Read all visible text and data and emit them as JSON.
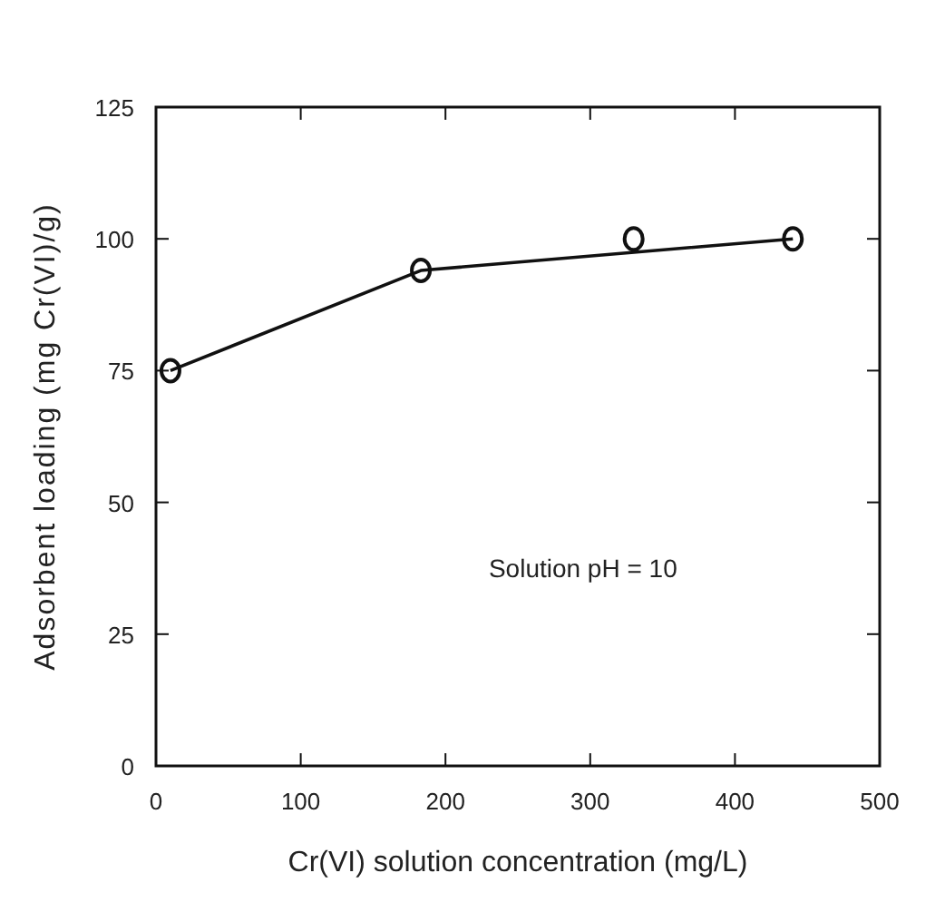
{
  "chart_data": {
    "type": "scatter",
    "xlabel": "Cr(VI) solution concentration (mg/L)",
    "ylabel": "Adsorbent loading (mg Cr(VI)/g)",
    "series": [
      {
        "color": "#111111",
        "x": [
          10,
          183,
          330,
          440
        ],
        "values": [
          75,
          94,
          100,
          100
        ],
        "marker": "circle"
      },
      {
        "type": "line",
        "color": "#111111",
        "x": [
          10,
          183,
          440
        ],
        "values": [
          75,
          94,
          100
        ],
        "marker": "none",
        "line_style": "solid"
      }
    ],
    "xlim": [
      0,
      500
    ],
    "xticks": [
      0,
      100,
      200,
      300,
      400,
      500
    ],
    "ylim": [
      0,
      125
    ],
    "yticks": [
      0,
      25,
      50,
      75,
      100,
      125
    ],
    "annotations": [
      "Solution pH = 10"
    ],
    "grid": false
  }
}
